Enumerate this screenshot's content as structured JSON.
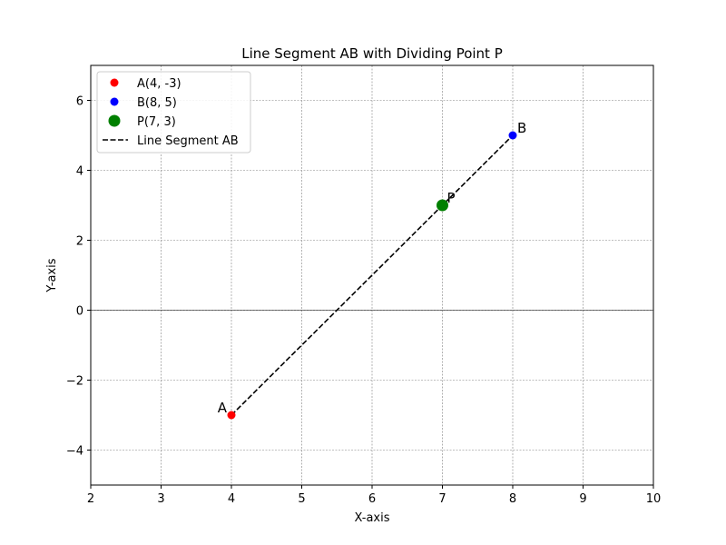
{
  "chart_data": {
    "type": "scatter",
    "title": "Line Segment AB with Dividing Point P",
    "xlabel": "X-axis",
    "ylabel": "Y-axis",
    "xlim": [
      2,
      10
    ],
    "ylim": [
      -5,
      7
    ],
    "xticks": [
      2,
      3,
      4,
      5,
      6,
      7,
      8,
      9,
      10
    ],
    "yticks": [
      -4,
      -2,
      0,
      2,
      4,
      6
    ],
    "grid": true,
    "legend_position": "top-left",
    "points": [
      {
        "id": "A",
        "x": 4,
        "y": -3,
        "color": "#ff0000",
        "label": "A",
        "legend": "A(4, -3)",
        "size": "small"
      },
      {
        "id": "B",
        "x": 8,
        "y": 5,
        "color": "#0000ff",
        "label": "B",
        "legend": "B(8, 5)",
        "size": "small"
      },
      {
        "id": "P",
        "x": 7,
        "y": 3,
        "color": "#008000",
        "label": "P",
        "legend": "P(7, 3)",
        "size": "large"
      }
    ],
    "segment": {
      "from": "A",
      "to": "B",
      "style": "dashed",
      "color": "#000000",
      "legend": "Line Segment AB"
    },
    "reference_lines": [
      {
        "axis": "y",
        "value": 0,
        "color": "#000000",
        "style": "solid"
      }
    ]
  }
}
